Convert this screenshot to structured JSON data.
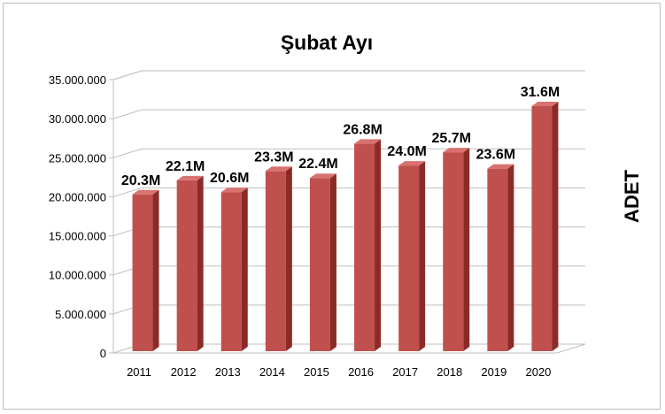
{
  "chart_data": {
    "type": "bar",
    "title": "Şubat Ayı",
    "xlabel": "",
    "ylabel": "ADET",
    "categories": [
      "2011",
      "2012",
      "2013",
      "2014",
      "2015",
      "2016",
      "2017",
      "2018",
      "2019",
      "2020"
    ],
    "values": [
      20300000,
      22100000,
      20600000,
      23300000,
      22400000,
      26800000,
      24000000,
      25700000,
      23600000,
      31600000
    ],
    "data_labels": [
      "20.3M",
      "22.1M",
      "20.6M",
      "23.3M",
      "22.4M",
      "26.8M",
      "24.0M",
      "25.7M",
      "23.6M",
      "31.6M"
    ],
    "ylim": [
      0,
      35000000
    ],
    "yticks": [
      0,
      5000000,
      10000000,
      15000000,
      20000000,
      25000000,
      30000000,
      35000000
    ],
    "ytick_labels": [
      "0",
      "5.000.000",
      "10.000.000",
      "15.000.000",
      "20.000.000",
      "25.000.000",
      "30.000.000",
      "35.000.000"
    ],
    "grid": true,
    "legend": "none",
    "bar_color": "#c0504d",
    "bar_side_color": "#8b2b28",
    "bar_top_color": "#d9726f"
  }
}
